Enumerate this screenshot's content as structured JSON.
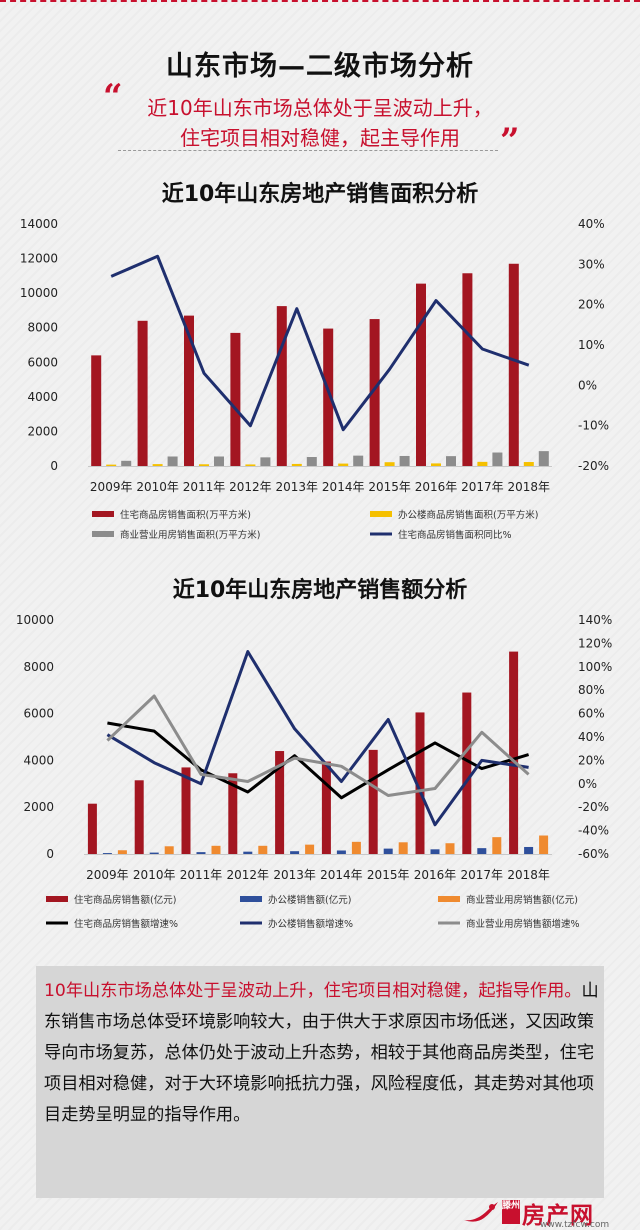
{
  "header": {
    "title": "山东市场—二级市场分析",
    "subtitle_line1": "近10年山东市场总体处于呈波动上升，",
    "subtitle_line2": "住宅项目相对稳健，起主导作用",
    "quote_open": "“",
    "quote_close": "”"
  },
  "chart_data": [
    {
      "type": "bar",
      "title": "近10年山东房地产销售面积分析",
      "categories": [
        "2009年",
        "2010年",
        "2011年",
        "2012年",
        "2013年",
        "2014年",
        "2015年",
        "2016年",
        "2017年",
        "2018年"
      ],
      "ylim": [
        0,
        14000
      ],
      "yticks": [
        "0",
        "2000",
        "4000",
        "6000",
        "8000",
        "10000",
        "12000",
        "14000"
      ],
      "y2lim": [
        -20,
        40
      ],
      "y2ticks": [
        "-20%",
        "-10%",
        "0%",
        "10%",
        "20%",
        "30%",
        "40%"
      ],
      "legend_position": "bottom",
      "series": [
        {
          "name": "住宅商品房销售面积(万平方米)",
          "type": "bar",
          "color": "#a31621",
          "axis": "left",
          "values": [
            6400,
            8400,
            8700,
            7700,
            9250,
            7950,
            8500,
            10550,
            11150,
            11700
          ]
        },
        {
          "name": "办公楼商品房销售面积(万平方米)",
          "type": "bar",
          "color": "#f5c000",
          "axis": "left",
          "values": [
            80,
            110,
            100,
            90,
            120,
            140,
            220,
            150,
            240,
            230
          ]
        },
        {
          "name": "商业营业用房销售面积(万平方米)",
          "type": "bar",
          "color": "#8c8c8c",
          "axis": "left",
          "values": [
            300,
            550,
            550,
            500,
            520,
            600,
            580,
            570,
            780,
            860
          ]
        },
        {
          "name": "住宅商品房销售面积同比%",
          "type": "line",
          "color": "#1f2f6e",
          "axis": "right",
          "values": [
            27,
            32,
            3,
            -10,
            19,
            -11,
            4,
            21,
            9,
            5
          ]
        }
      ]
    },
    {
      "type": "bar",
      "title": "近10年山东房地产销售额分析",
      "categories": [
        "2009年",
        "2010年",
        "2011年",
        "2012年",
        "2013年",
        "2014年",
        "2015年",
        "2016年",
        "2017年",
        "2018年"
      ],
      "ylim": [
        0,
        10000
      ],
      "yticks": [
        "0",
        "2000",
        "4000",
        "6000",
        "8000",
        "10000"
      ],
      "y2lim": [
        -60,
        140
      ],
      "y2ticks": [
        "-60%",
        "-40%",
        "-20%",
        "0%",
        "20%",
        "40%",
        "60%",
        "80%",
        "100%",
        "120%",
        "140%"
      ],
      "legend_position": "bottom",
      "series": [
        {
          "name": "住宅商品房销售额(亿元)",
          "type": "bar",
          "color": "#a31621",
          "axis": "left",
          "values": [
            2150,
            3150,
            3700,
            3450,
            4400,
            3950,
            4450,
            6050,
            6900,
            8650
          ]
        },
        {
          "name": "办公楼销售额(亿元)",
          "type": "bar",
          "color": "#2e4f9b",
          "axis": "left",
          "values": [
            40,
            60,
            80,
            100,
            120,
            150,
            230,
            200,
            250,
            300
          ]
        },
        {
          "name": "商业营业用房销售额(亿元)",
          "type": "bar",
          "color": "#ef8a2f",
          "axis": "left",
          "values": [
            160,
            330,
            350,
            350,
            400,
            520,
            500,
            460,
            720,
            790
          ]
        },
        {
          "name": "住宅商品房销售额增速%",
          "type": "line",
          "color": "#000000",
          "axis": "right",
          "values": [
            52,
            45,
            12,
            -7,
            24,
            -12,
            12,
            35,
            13,
            25
          ]
        },
        {
          "name": "办公楼销售额增速%",
          "type": "line",
          "color": "#1f2f6e",
          "axis": "right",
          "values": [
            42,
            18,
            0,
            113,
            47,
            2,
            55,
            -35,
            20,
            14
          ]
        },
        {
          "name": "商业营业用房销售额增速%",
          "type": "line",
          "color": "#8c8c8c",
          "axis": "right",
          "values": [
            37,
            75,
            8,
            2,
            22,
            15,
            -10,
            -4,
            44,
            8
          ]
        }
      ]
    }
  ],
  "summary": {
    "lead": "10年山东市场总体处于呈波动上升，住宅项目相对稳健，起指导作用。",
    "body": "山东销售市场总体受环境影响较大，由于供大于求原因市场低迷，又因政策导向市场复苏，总体仍处于波动上升态势，相较于其他商品房类型，住宅项目相对稳健，对于大环境影响抵抗力强，风险程度低，其走势对其他项目走势呈明显的指导作用。"
  },
  "logo": {
    "city": "滕州",
    "name": "房产网",
    "url": "www.tzfcw.com"
  },
  "colors": {
    "accent": "#c8102e",
    "summary_bg": "#d6d6d6"
  }
}
